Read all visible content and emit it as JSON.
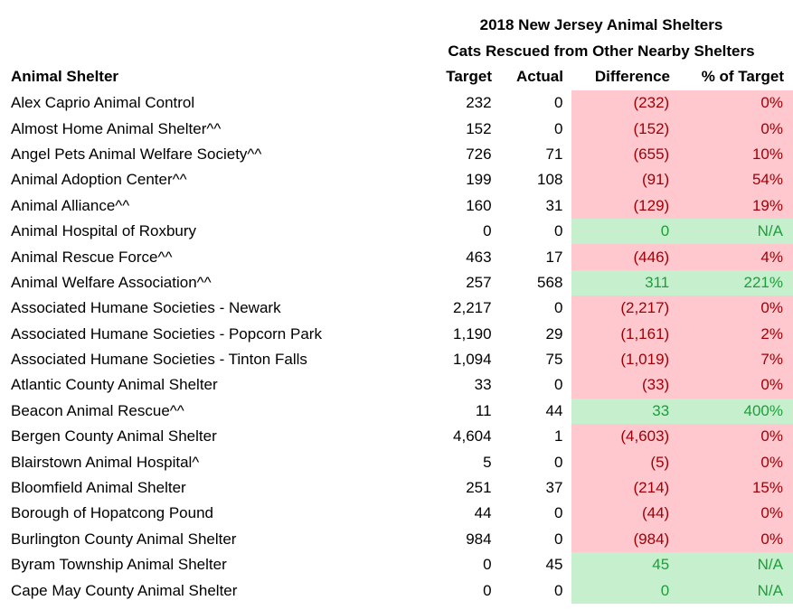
{
  "title": "2018 New Jersey Animal Shelters",
  "subtitle": "Cats Rescued from Other Nearby Shelters",
  "headers": {
    "shelter": "Animal Shelter",
    "target": "Target",
    "actual": "Actual",
    "difference": "Difference",
    "pct": "% of Target"
  },
  "colors": {
    "negative_fill": "#ffc7ce",
    "negative_text": "#9c0006",
    "positive_fill": "#c6efce",
    "positive_text": "#1e9e3a"
  },
  "rows": [
    {
      "name": "Alex Caprio Animal Control",
      "target": "232",
      "actual": "0",
      "difference": "(232)",
      "pct": "0%",
      "status": "neg"
    },
    {
      "name": "Almost Home Animal Shelter^^",
      "target": "152",
      "actual": "0",
      "difference": "(152)",
      "pct": "0%",
      "status": "neg"
    },
    {
      "name": "Angel Pets Animal Welfare Society^^",
      "target": "726",
      "actual": "71",
      "difference": "(655)",
      "pct": "10%",
      "status": "neg"
    },
    {
      "name": "Animal Adoption Center^^",
      "target": "199",
      "actual": "108",
      "difference": "(91)",
      "pct": "54%",
      "status": "neg"
    },
    {
      "name": "Animal Alliance^^",
      "target": "160",
      "actual": "31",
      "difference": "(129)",
      "pct": "19%",
      "status": "neg"
    },
    {
      "name": "Animal Hospital of Roxbury",
      "target": "0",
      "actual": "0",
      "difference": "0",
      "pct": "N/A",
      "status": "pos"
    },
    {
      "name": "Animal Rescue Force^^",
      "target": "463",
      "actual": "17",
      "difference": "(446)",
      "pct": "4%",
      "status": "neg"
    },
    {
      "name": "Animal Welfare Association^^",
      "target": "257",
      "actual": "568",
      "difference": "311",
      "pct": "221%",
      "status": "pos"
    },
    {
      "name": "Associated Humane Societies - Newark",
      "target": "2,217",
      "actual": "0",
      "difference": "(2,217)",
      "pct": "0%",
      "status": "neg"
    },
    {
      "name": "Associated Humane Societies - Popcorn Park",
      "target": "1,190",
      "actual": "29",
      "difference": "(1,161)",
      "pct": "2%",
      "status": "neg"
    },
    {
      "name": "Associated Humane Societies - Tinton Falls",
      "target": "1,094",
      "actual": "75",
      "difference": "(1,019)",
      "pct": "7%",
      "status": "neg"
    },
    {
      "name": "Atlantic County Animal Shelter",
      "target": "33",
      "actual": "0",
      "difference": "(33)",
      "pct": "0%",
      "status": "neg"
    },
    {
      "name": "Beacon Animal Rescue^^",
      "target": "11",
      "actual": "44",
      "difference": "33",
      "pct": "400%",
      "status": "pos"
    },
    {
      "name": "Bergen County Animal Shelter",
      "target": "4,604",
      "actual": "1",
      "difference": "(4,603)",
      "pct": "0%",
      "status": "neg"
    },
    {
      "name": "Blairstown Animal Hospital^",
      "target": "5",
      "actual": "0",
      "difference": "(5)",
      "pct": "0%",
      "status": "neg"
    },
    {
      "name": "Bloomfield Animal Shelter",
      "target": "251",
      "actual": "37",
      "difference": "(214)",
      "pct": "15%",
      "status": "neg"
    },
    {
      "name": "Borough of Hopatcong Pound",
      "target": "44",
      "actual": "0",
      "difference": "(44)",
      "pct": "0%",
      "status": "neg"
    },
    {
      "name": "Burlington County Animal Shelter",
      "target": "984",
      "actual": "0",
      "difference": "(984)",
      "pct": "0%",
      "status": "neg"
    },
    {
      "name": "Byram Township Animal Shelter",
      "target": "0",
      "actual": "45",
      "difference": "45",
      "pct": "N/A",
      "status": "pos"
    },
    {
      "name": "Cape May County Animal Shelter",
      "target": "0",
      "actual": "0",
      "difference": "0",
      "pct": "N/A",
      "status": "pos"
    }
  ]
}
